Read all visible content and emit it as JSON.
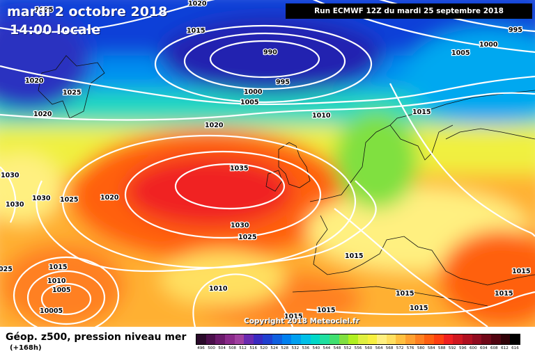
{
  "title": {
    "date": "mardi 2 octobre 2018",
    "time": "14:00 locale"
  },
  "run_info": "Run ECMWF 12Z du mardi 25 septembre 2018",
  "copyright": "Copyright 2018 Meteociel.fr",
  "legend": {
    "title": "Géop. z500, pression niveau mer",
    "lead": "(+168h)",
    "colors": [
      "#2a0a2a",
      "#4b0f4b",
      "#6b1a6b",
      "#8a2a8a",
      "#a040a0",
      "#6a2ab0",
      "#3a2ac0",
      "#2040d0",
      "#1060e0",
      "#0080f0",
      "#00a0f0",
      "#00c0e8",
      "#00d8c8",
      "#20e0a0",
      "#40e070",
      "#80e040",
      "#b0f020",
      "#e0f040",
      "#f8f040",
      "#fff080",
      "#ffe060",
      "#ffc040",
      "#ffa030",
      "#ff8020",
      "#ff6010",
      "#ff4010",
      "#f02020",
      "#d01820",
      "#b01020",
      "#900c20",
      "#700818",
      "#500410",
      "#300208",
      "#000000"
    ],
    "ticks": [
      "496",
      "500",
      "504",
      "508",
      "512",
      "516",
      "520",
      "524",
      "528",
      "532",
      "536",
      "540",
      "544",
      "548",
      "552",
      "556",
      "560",
      "564",
      "568",
      "572",
      "576",
      "580",
      "584",
      "588",
      "592",
      "596",
      "600",
      "604",
      "608",
      "612",
      "616"
    ]
  },
  "isobars": [
    {
      "label": "1020"
    },
    {
      "label": "1025"
    },
    {
      "label": "1015"
    },
    {
      "label": "990"
    },
    {
      "label": "995"
    },
    {
      "label": "995"
    },
    {
      "label": "1000"
    },
    {
      "label": "1005"
    },
    {
      "label": "1020"
    },
    {
      "label": "1025"
    },
    {
      "label": "1020"
    },
    {
      "label": "1000"
    },
    {
      "label": "1005"
    },
    {
      "label": "1010"
    },
    {
      "label": "1015"
    },
    {
      "label": "1020"
    },
    {
      "label": "1035"
    },
    {
      "label": "1030"
    },
    {
      "label": "1030"
    },
    {
      "label": "1030"
    },
    {
      "label": "1025"
    },
    {
      "label": "1020"
    },
    {
      "label": "1030"
    },
    {
      "label": "1025"
    },
    {
      "label": "1015"
    },
    {
      "label": "1015"
    },
    {
      "label": "1010"
    },
    {
      "label": "1005"
    },
    {
      "label": "1010"
    },
    {
      "label": "10005"
    },
    {
      "label": "1015"
    },
    {
      "label": "1015"
    },
    {
      "label": "1015"
    },
    {
      "label": "1015"
    },
    {
      "label": "1015"
    },
    {
      "label": "1015"
    },
    {
      "label": "025"
    }
  ]
}
